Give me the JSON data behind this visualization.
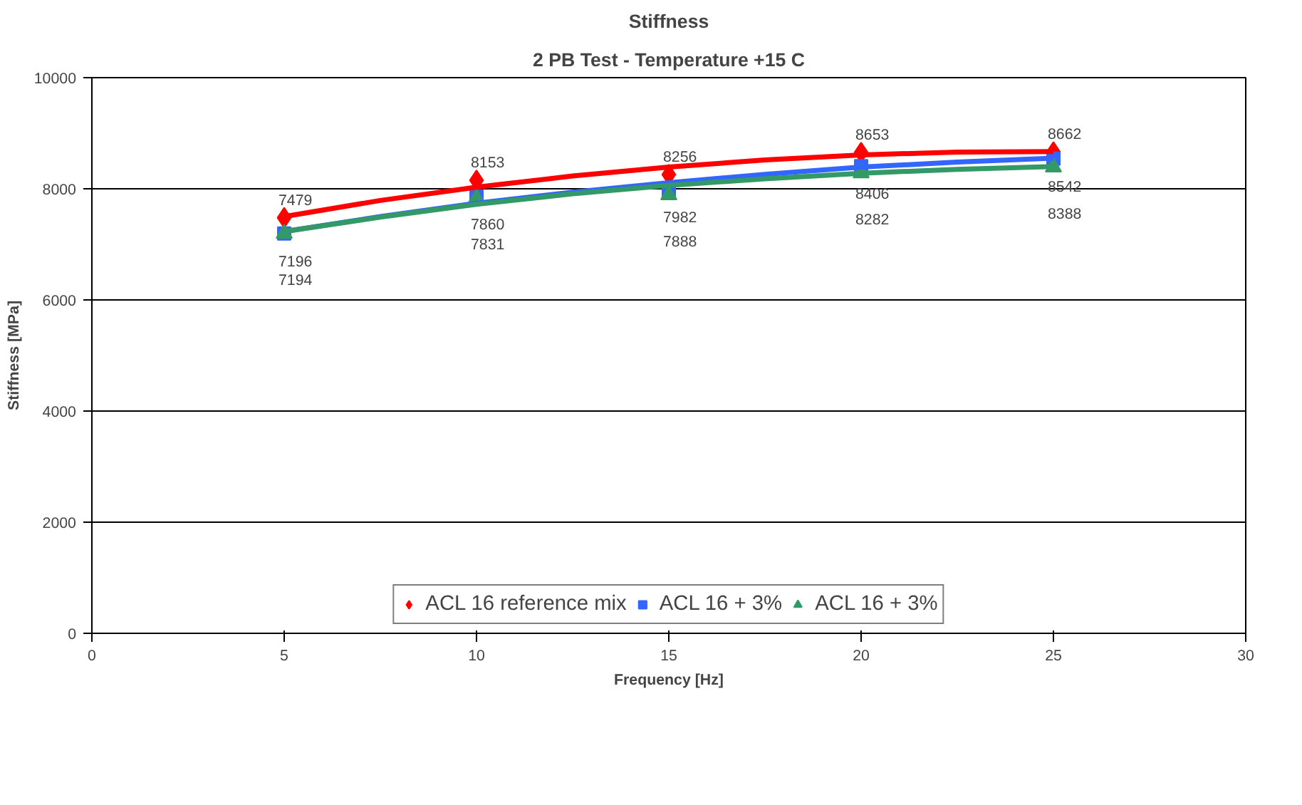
{
  "chart_data": {
    "type": "scatter",
    "title": "Stiffness",
    "subtitle": "2 PB Test - Temperature +15 C",
    "xlabel": "Frequency [Hz]",
    "ylabel": "Stiffness [MPa]",
    "x": [
      5,
      10,
      15,
      20,
      25
    ],
    "xlim": [
      0,
      30
    ],
    "xticks": [
      0,
      5,
      10,
      15,
      20,
      25,
      30
    ],
    "ylim": [
      0,
      10000
    ],
    "yticks": [
      0,
      2000,
      4000,
      6000,
      8000,
      10000
    ],
    "grid": "y",
    "legend": "bottom",
    "series": [
      {
        "name": "ACL 16 reference mix",
        "color": "#ff0000",
        "marker": "diamond",
        "values": [
          7479,
          8153,
          8256,
          8653,
          8662
        ],
        "value_labels": [
          "7479",
          "8153",
          "8256",
          "8653",
          "8662"
        ]
      },
      {
        "name": "ACL 16 + 3%",
        "color": "#3366ff",
        "marker": "square",
        "values": [
          7196,
          7860,
          7982,
          8406,
          8542
        ],
        "value_labels": [
          "7196",
          "7860",
          "7982",
          "8406",
          "8542"
        ]
      },
      {
        "name": "ACL 16 + 3%",
        "color": "#339966",
        "marker": "triangle",
        "values": [
          7194,
          7831,
          7888,
          8282,
          8388
        ],
        "value_labels": [
          "7194",
          "7831",
          "7888",
          "8282",
          "8388"
        ]
      },
      {
        "type": "line",
        "color": "#ff0000",
        "x": [
          5,
          7.5,
          10,
          12.5,
          15,
          17.5,
          20,
          22.5,
          25
        ],
        "values": [
          7500,
          7790,
          8030,
          8230,
          8390,
          8520,
          8610,
          8660,
          8670
        ]
      },
      {
        "type": "line",
        "color": "#3366ff",
        "x": [
          5,
          7.5,
          10,
          12.5,
          15,
          17.5,
          20,
          22.5,
          25
        ],
        "values": [
          7230,
          7500,
          7740,
          7940,
          8110,
          8260,
          8390,
          8480,
          8550
        ]
      },
      {
        "type": "line",
        "color": "#339966",
        "x": [
          5,
          7.5,
          10,
          12.5,
          15,
          17.5,
          20,
          22.5,
          25
        ],
        "values": [
          7230,
          7490,
          7720,
          7910,
          8060,
          8180,
          8280,
          8350,
          8400
        ]
      }
    ]
  }
}
